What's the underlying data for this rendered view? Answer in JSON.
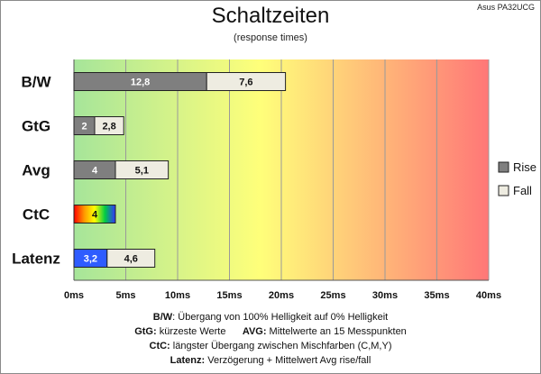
{
  "header": {
    "model": "Asus PA32UCG"
  },
  "chart_data": {
    "type": "bar",
    "orientation": "horizontal",
    "stacked": true,
    "title": "Schaltzeiten",
    "subtitle": "(response times)",
    "categories": [
      "B/W",
      "GtG",
      "Avg",
      "CtC",
      "Latenz"
    ],
    "series": [
      {
        "name": "Rise",
        "values": [
          12.8,
          2,
          4,
          null,
          3.2
        ],
        "labels": [
          "12,8",
          "2",
          "4",
          "",
          "3,2"
        ],
        "color": "#7f7f7f"
      },
      {
        "name": "Fall",
        "values": [
          7.6,
          2.8,
          5.1,
          null,
          4.6
        ],
        "labels": [
          "7,6",
          "2,8",
          "5,1",
          "",
          "4,6"
        ],
        "color": "#eeece1"
      }
    ],
    "ctc": {
      "value": 4,
      "label": "4"
    },
    "latenz_rise_color": "#2e5cff",
    "xlim": [
      0,
      40
    ],
    "xticks": [
      0,
      5,
      10,
      15,
      20,
      25,
      30,
      35,
      40
    ],
    "xtick_labels": [
      "0ms",
      "5ms",
      "10ms",
      "15ms",
      "20ms",
      "25ms",
      "30ms",
      "35ms",
      "40ms"
    ],
    "background_gradient": [
      "#a6e59a",
      "#ffff7a",
      "#ff7777"
    ],
    "grid": true,
    "legend_position": "right"
  },
  "notes": [
    {
      "label": "B/W",
      "text": ":  Übergang von 100% Helligkeit auf 0% Helligkeit"
    },
    {
      "label": "GtG:",
      "text": " kürzeste  Werte",
      "label2": "AVG:",
      "text2": " Mittelwerte  an 15 Messpunkten"
    },
    {
      "label": "CtC:",
      "text": " längster Übergang  zwischen Mischfarben  (C,M,Y)"
    },
    {
      "label": "Latenz:",
      "text": " Verzögerung  + Mittelwert  Avg rise/fall"
    }
  ]
}
